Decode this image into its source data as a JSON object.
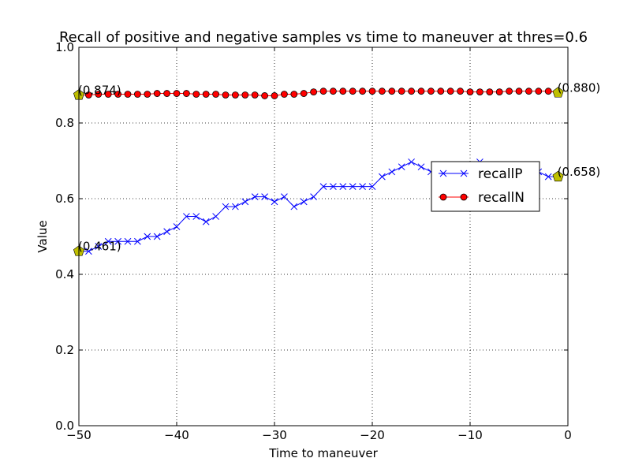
{
  "chart_data": {
    "type": "line",
    "title": "Recall of positive and negative samples vs time to maneuver at thres=0.6",
    "xlabel": "Time to maneuver",
    "ylabel": "Value",
    "xlim": [
      -50,
      0
    ],
    "ylim": [
      0.0,
      1.0
    ],
    "xticks": [
      -50,
      -40,
      -30,
      -20,
      -10,
      0
    ],
    "xtick_labels": [
      "−50",
      "−40",
      "−30",
      "−20",
      "−10",
      "0"
    ],
    "yticks": [
      0.0,
      0.2,
      0.4,
      0.6,
      0.8,
      1.0
    ],
    "ytick_labels": [
      "0.0",
      "0.2",
      "0.4",
      "0.6",
      "0.8",
      "1.0"
    ],
    "grid": true,
    "legend_position": "center-right",
    "x": [
      -50,
      -49,
      -48,
      -47,
      -46,
      -45,
      -44,
      -43,
      -42,
      -41,
      -40,
      -39,
      -38,
      -37,
      -36,
      -35,
      -34,
      -33,
      -32,
      -31,
      -30,
      -29,
      -28,
      -27,
      -26,
      -25,
      -24,
      -23,
      -22,
      -21,
      -20,
      -19,
      -18,
      -17,
      -16,
      -15,
      -14,
      -13,
      -12,
      -11,
      -10,
      -9,
      -8,
      -7,
      -6,
      -5,
      -4,
      -3,
      -2,
      -1
    ],
    "series": [
      {
        "name": "recallP",
        "color": "#0000ff",
        "marker": "x",
        "values": [
          0.461,
          0.461,
          0.474,
          0.487,
          0.487,
          0.487,
          0.487,
          0.5,
          0.5,
          0.513,
          0.526,
          0.553,
          0.553,
          0.539,
          0.553,
          0.579,
          0.579,
          0.592,
          0.605,
          0.605,
          0.592,
          0.605,
          0.579,
          0.592,
          0.605,
          0.632,
          0.632,
          0.632,
          0.632,
          0.632,
          0.632,
          0.658,
          0.671,
          0.684,
          0.697,
          0.684,
          0.671,
          0.671,
          0.684,
          0.684,
          0.684,
          0.697,
          0.684,
          0.684,
          0.684,
          0.671,
          0.671,
          0.671,
          0.658,
          0.658
        ]
      },
      {
        "name": "recallN",
        "color": "#ff0000",
        "marker": "o",
        "values": [
          0.874,
          0.874,
          0.876,
          0.876,
          0.876,
          0.876,
          0.876,
          0.876,
          0.878,
          0.878,
          0.878,
          0.878,
          0.876,
          0.876,
          0.876,
          0.874,
          0.874,
          0.874,
          0.874,
          0.872,
          0.872,
          0.876,
          0.876,
          0.878,
          0.882,
          0.884,
          0.884,
          0.884,
          0.884,
          0.884,
          0.884,
          0.884,
          0.884,
          0.884,
          0.884,
          0.884,
          0.884,
          0.884,
          0.884,
          0.884,
          0.882,
          0.882,
          0.882,
          0.882,
          0.884,
          0.884,
          0.884,
          0.884,
          0.884,
          0.88
        ]
      }
    ],
    "endpoint_markers": {
      "color": "#bfbf00",
      "shape": "pentagon",
      "points": [
        {
          "x": -50,
          "y": 0.874,
          "label": "(0.874)"
        },
        {
          "x": -1,
          "y": 0.88,
          "label": "(0.880)"
        },
        {
          "x": -50,
          "y": 0.461,
          "label": "(0.461)"
        },
        {
          "x": -1,
          "y": 0.658,
          "label": "(0.658)"
        }
      ]
    }
  }
}
